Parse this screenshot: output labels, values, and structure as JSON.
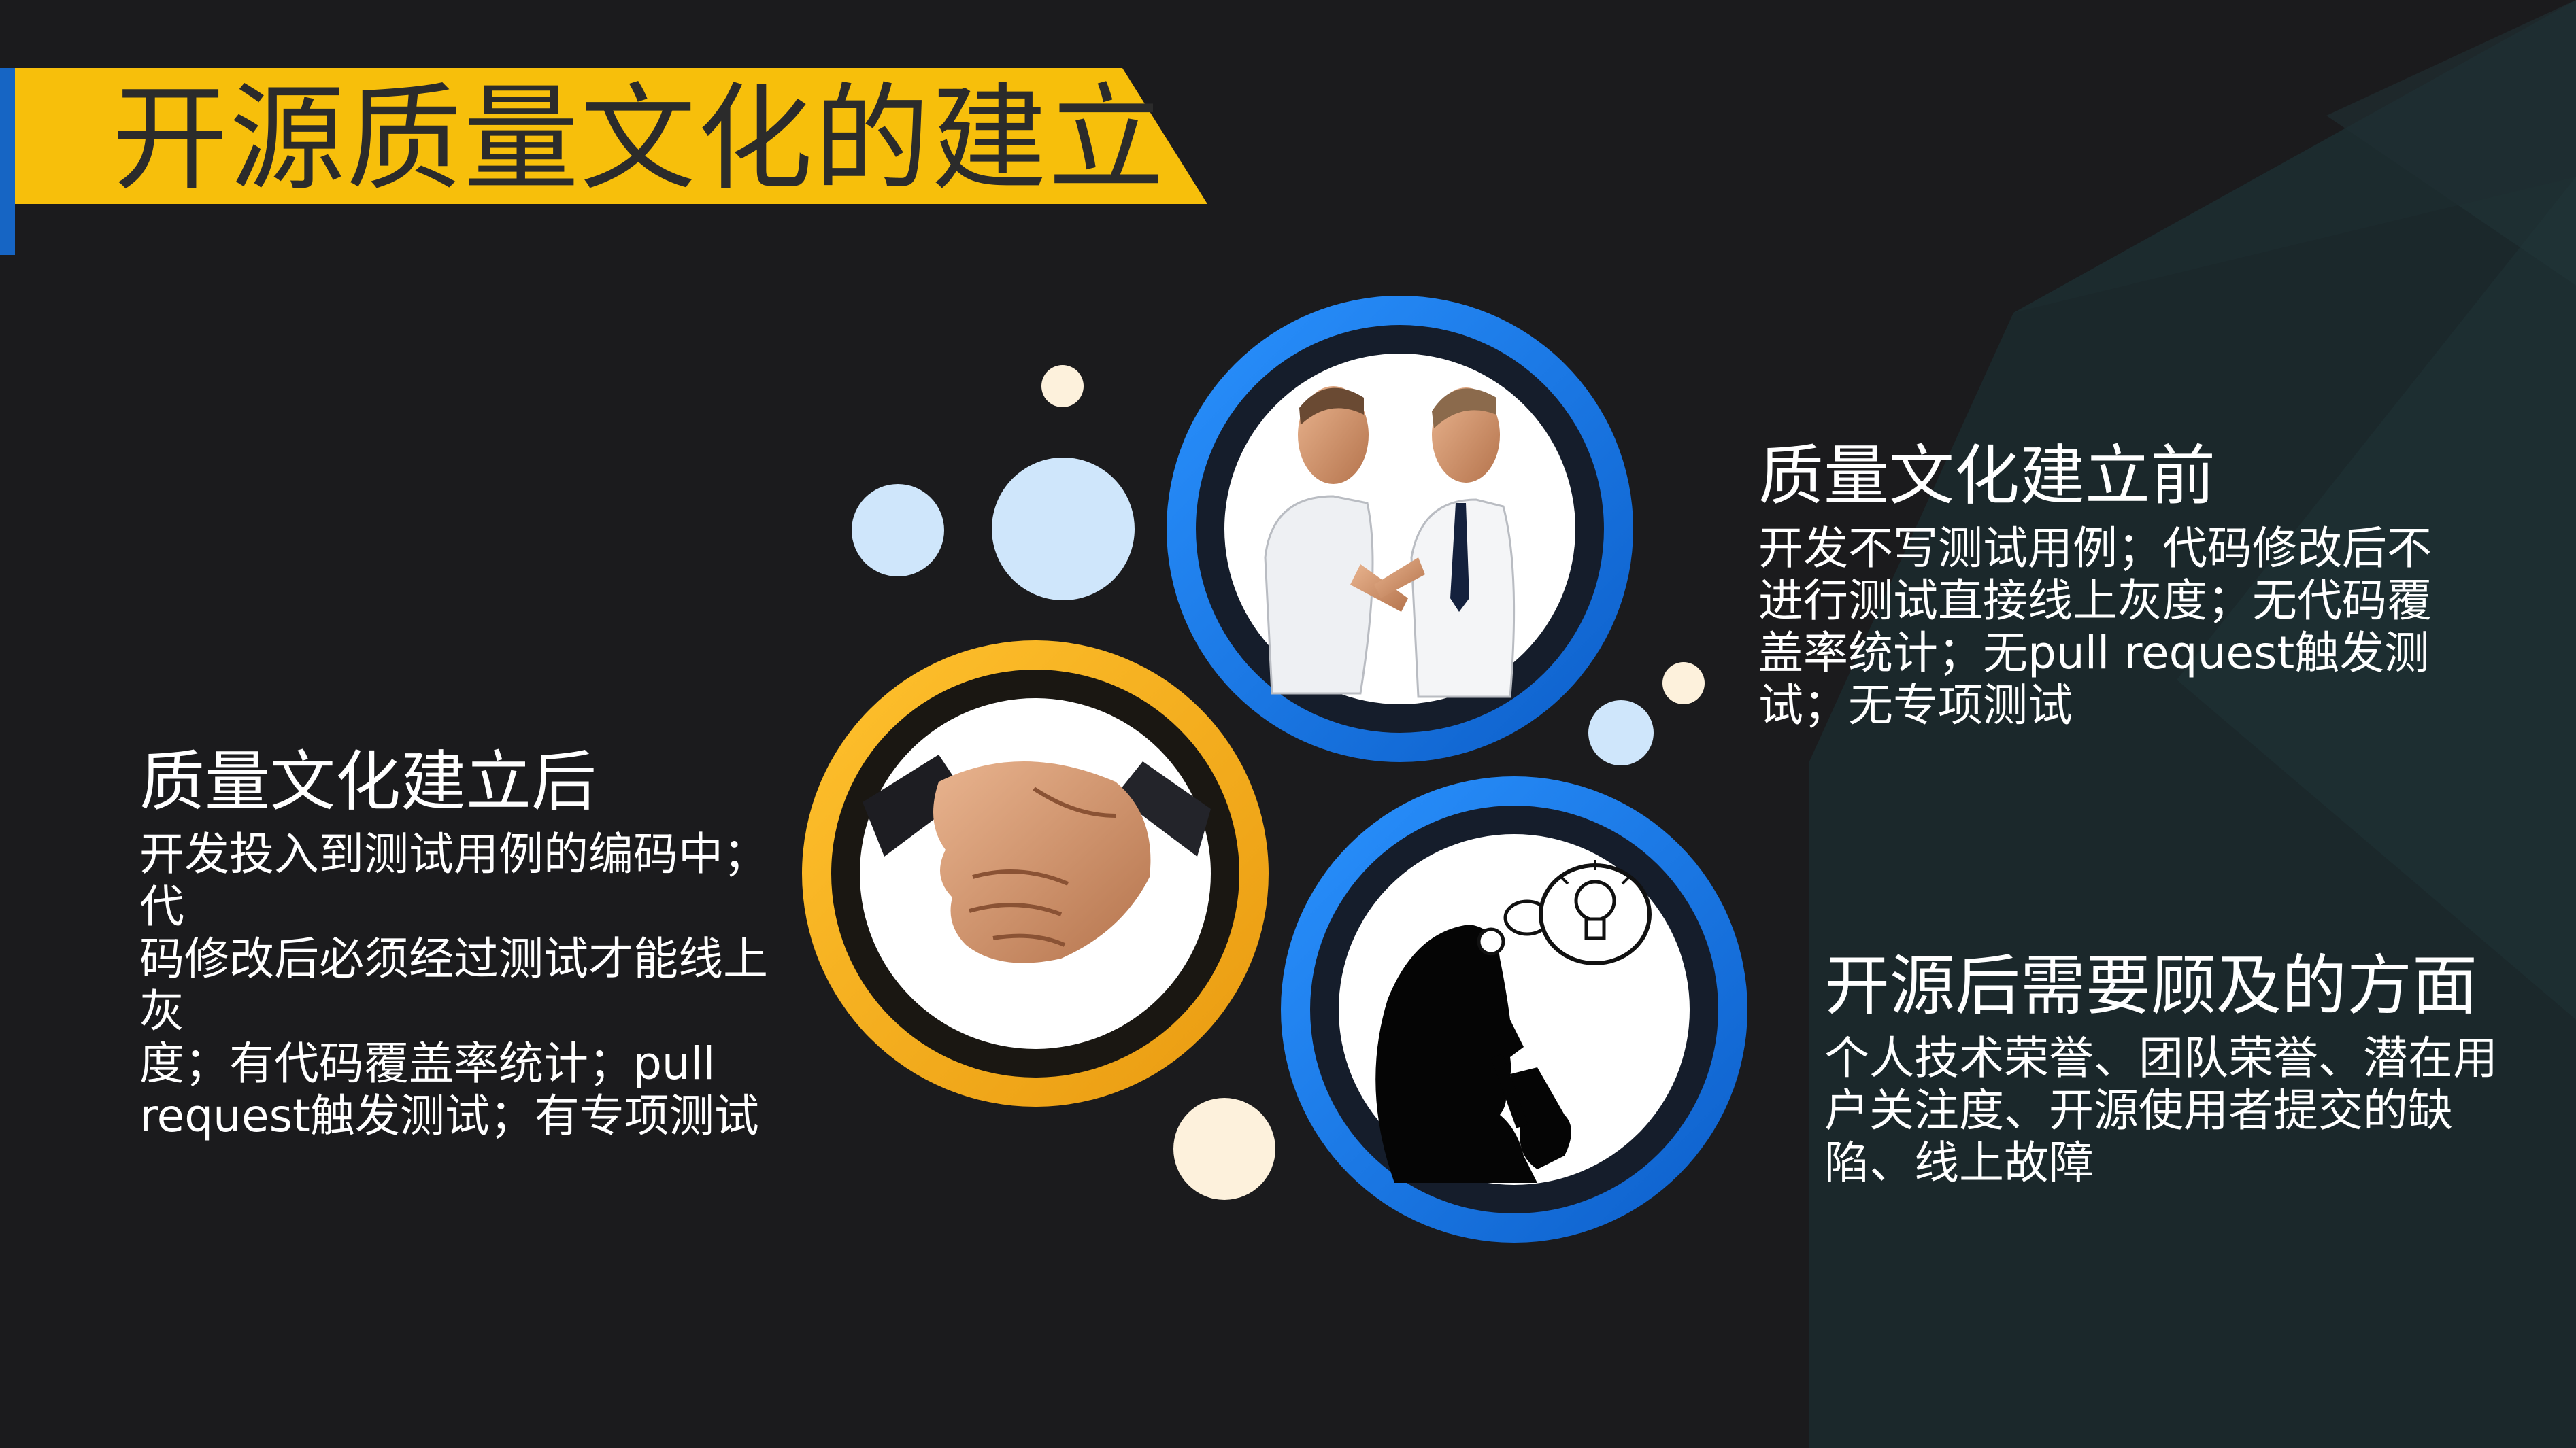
{
  "title": "开源质量文化的建立",
  "sections": {
    "before": {
      "heading": "质量文化建立前",
      "lines": [
        "开发不写测试用例；代码修改后不",
        "进行测试直接线上灰度；无代码覆",
        "盖率统计；无pull request触发测",
        "试；无专项测试"
      ]
    },
    "after": {
      "heading": "质量文化建立后",
      "lines": [
        "开发投入到测试用例的编码中；代",
        "码修改后必须经过测试才能线上灰",
        "度；有代码覆盖率统计；pull",
        "request触发测试；有专项测试"
      ]
    },
    "opensource": {
      "heading": "开源后需要顾及的方面",
      "lines": [
        "个人技术荣誉、团队荣誉、潜在用",
        "户关注度、开源使用者提交的缺",
        "陷、线上故障"
      ]
    }
  },
  "illustrations": {
    "before": "two-men-arguing-image",
    "after": "handshake-image",
    "opensource": "thinking-silhouette-image"
  },
  "colors": {
    "background": "#1b1b1d",
    "title_bar": "#f7bf0b",
    "title_accent": "#1665c4",
    "ring_blue": "#1877e6",
    "ring_yellow": "#f5ae23",
    "bubble_light_blue": "#cfe6fb",
    "bubble_cream": "#fdf1dc",
    "text": "#ffffff"
  }
}
